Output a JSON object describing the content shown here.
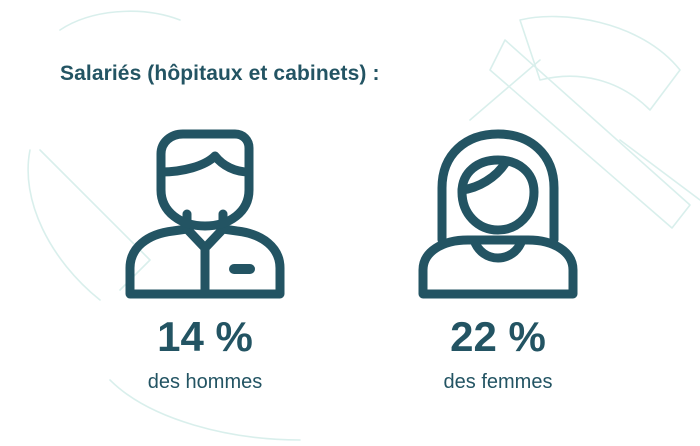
{
  "title": "Salariés (hôpitaux et cabinets) :",
  "colors": {
    "primary": "#235463",
    "decoration": "#d9efec",
    "background": "#ffffff"
  },
  "stats": [
    {
      "icon": "man-icon",
      "percent": "14 %",
      "value": 14,
      "caption": "des hommes"
    },
    {
      "icon": "woman-icon",
      "percent": "22 %",
      "value": 22,
      "caption": "des femmes"
    }
  ]
}
